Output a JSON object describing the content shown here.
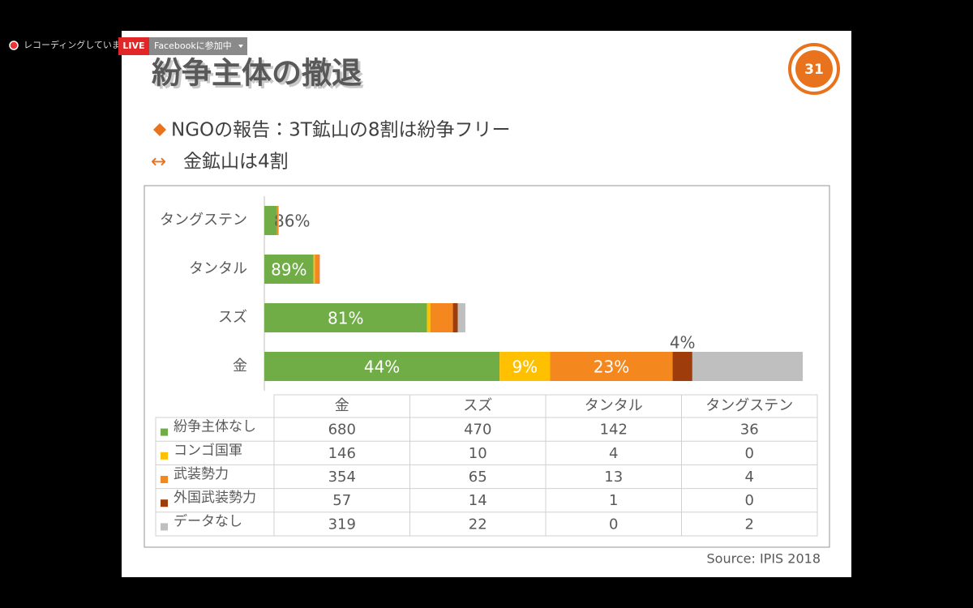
{
  "recording": {
    "label": "レコーディングしています"
  },
  "live": {
    "badge": "LIVE",
    "status": "Facebookに参加中"
  },
  "slide": {
    "title": "紛争主体の撤退",
    "page": "31",
    "bullets": [
      "NGOの報告：3T鉱山の8割は紛争フリー",
      "金鉱山は4割"
    ],
    "source": "Source: IPIS 2018"
  },
  "chart_data": {
    "type": "bar",
    "orientation": "horizontal",
    "stacked": true,
    "categories": [
      "タングステン",
      "タンタル",
      "スズ",
      "金"
    ],
    "series": [
      {
        "name": "紛争主体なし",
        "color": "#70ad47",
        "values": [
          36,
          142,
          470,
          680
        ],
        "percent_labels": [
          "86%",
          "89%",
          "81%",
          "44%"
        ]
      },
      {
        "name": "コンゴ国軍",
        "color": "#ffc000",
        "values": [
          0,
          4,
          10,
          146
        ],
        "percent_labels": [
          null,
          null,
          null,
          "9%"
        ]
      },
      {
        "name": "武装勢力",
        "color": "#f5871f",
        "values": [
          4,
          13,
          65,
          354
        ],
        "percent_labels": [
          null,
          null,
          null,
          "23%"
        ]
      },
      {
        "name": "外国武装勢力",
        "color": "#9e3d0b",
        "values": [
          0,
          1,
          14,
          57
        ],
        "percent_labels": [
          null,
          null,
          null,
          "4%"
        ]
      },
      {
        "name": "データなし",
        "color": "#bfbfbf",
        "values": [
          2,
          0,
          22,
          319
        ],
        "percent_labels": [
          null,
          null,
          null,
          null
        ]
      }
    ]
  }
}
